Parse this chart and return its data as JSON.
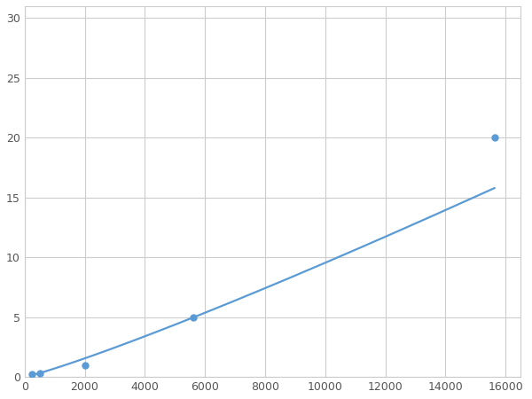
{
  "x_points": [
    250,
    500,
    2000,
    5625,
    15625
  ],
  "y_points": [
    0.2,
    0.3,
    1.0,
    5.0,
    20.0
  ],
  "line_color": "#5B9BD5",
  "marker_color": "#5B9BD5",
  "marker_size": 5,
  "line_width": 1.6,
  "xlim": [
    0,
    16500
  ],
  "ylim": [
    0,
    31
  ],
  "xticks": [
    0,
    2000,
    4000,
    6000,
    8000,
    10000,
    12000,
    14000,
    16000
  ],
  "yticks": [
    0,
    5,
    10,
    15,
    20,
    25,
    30
  ],
  "grid_color": "#CCCCCC",
  "background_color": "#FFFFFF",
  "figsize": [
    6.0,
    4.5
  ],
  "dpi": 100
}
